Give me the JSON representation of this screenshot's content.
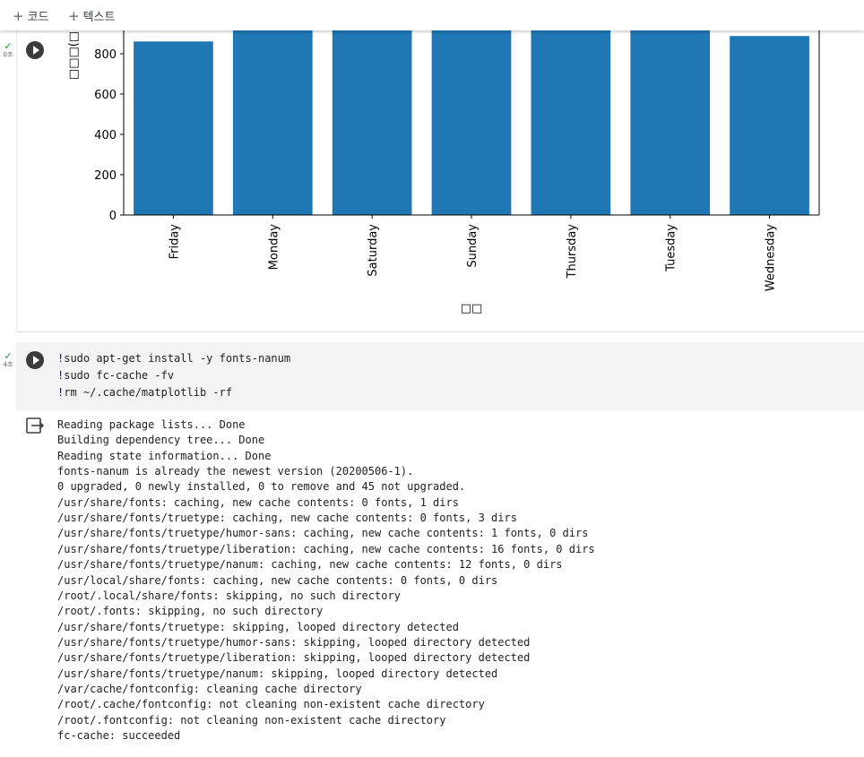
{
  "toolbar": {
    "add_code": "코드",
    "add_text": "텍스트"
  },
  "cell1": {
    "exec_time": "0초"
  },
  "chart_data": {
    "type": "bar",
    "categories": [
      "Friday",
      "Monday",
      "Saturday",
      "Sunday",
      "Thursday",
      "Tuesday",
      "Wednesday"
    ],
    "values": [
      861,
      950,
      950,
      950,
      950,
      950,
      888
    ],
    "xlabel": "□□",
    "ylabel": "□□□(□",
    "yticks": [
      0,
      200,
      400,
      600,
      800
    ],
    "ylim": [
      0,
      1000
    ],
    "bar_color": "#1f77b4"
  },
  "cell2": {
    "exec_time": "4초",
    "code": [
      {
        "bang": "!",
        "text": "sudo apt-get install -y fonts-nanum"
      },
      {
        "bang": "!",
        "text": "sudo fc-cache -fv"
      },
      {
        "bang": "!",
        "text": "rm ~/.cache/matplotlib -rf"
      }
    ],
    "output": [
      "Reading package lists... Done",
      "Building dependency tree... Done",
      "Reading state information... Done",
      "fonts-nanum is already the newest version (20200506-1).",
      "0 upgraded, 0 newly installed, 0 to remove and 45 not upgraded.",
      "/usr/share/fonts: caching, new cache contents: 0 fonts, 1 dirs",
      "/usr/share/fonts/truetype: caching, new cache contents: 0 fonts, 3 dirs",
      "/usr/share/fonts/truetype/humor-sans: caching, new cache contents: 1 fonts, 0 dirs",
      "/usr/share/fonts/truetype/liberation: caching, new cache contents: 16 fonts, 0 dirs",
      "/usr/share/fonts/truetype/nanum: caching, new cache contents: 12 fonts, 0 dirs",
      "/usr/local/share/fonts: caching, new cache contents: 0 fonts, 0 dirs",
      "/root/.local/share/fonts: skipping, no such directory",
      "/root/.fonts: skipping, no such directory",
      "/usr/share/fonts/truetype: skipping, looped directory detected",
      "/usr/share/fonts/truetype/humor-sans: skipping, looped directory detected",
      "/usr/share/fonts/truetype/liberation: skipping, looped directory detected",
      "/usr/share/fonts/truetype/nanum: skipping, looped directory detected",
      "/var/cache/fontconfig: cleaning cache directory",
      "/root/.cache/fontconfig: not cleaning non-existent cache directory",
      "/root/.fontconfig: not cleaning non-existent cache directory",
      "fc-cache: succeeded"
    ]
  }
}
